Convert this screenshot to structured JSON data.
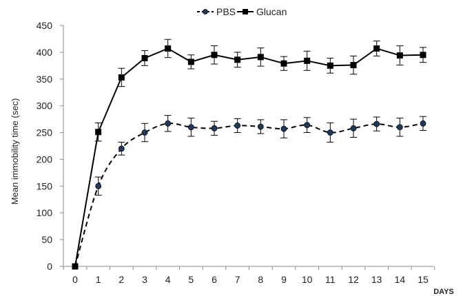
{
  "chart_data": {
    "type": "line",
    "title": "",
    "xlabel": "DAYS",
    "ylabel": "Mean immobility time (sec)",
    "xlim": [
      0,
      15
    ],
    "ylim": [
      0,
      450
    ],
    "x": [
      0,
      1,
      2,
      3,
      4,
      5,
      6,
      7,
      8,
      9,
      10,
      11,
      12,
      13,
      14,
      15
    ],
    "x_tick_labels": [
      "0",
      "1",
      "2",
      "3",
      "4",
      "5",
      "6",
      "7",
      "8",
      "9",
      "10",
      "11",
      "12",
      "13",
      "14",
      "15"
    ],
    "y_ticks": [
      0,
      50,
      100,
      150,
      200,
      250,
      300,
      350,
      400,
      450
    ],
    "y_tick_labels": [
      "0",
      "50",
      "100",
      "150",
      "200",
      "250",
      "300",
      "350",
      "400",
      "450"
    ],
    "grid": false,
    "legend_position": "top-center",
    "series": [
      {
        "name": "PBS",
        "line_style": "dashed",
        "marker": "circle",
        "color": "#000000",
        "marker_fill": "#1f3a5f",
        "values": [
          0,
          150,
          220,
          250,
          267,
          260,
          258,
          263,
          261,
          257,
          264,
          250,
          258,
          266,
          260,
          267
        ],
        "errors": [
          0,
          17,
          12,
          17,
          15,
          17,
          13,
          13,
          13,
          17,
          14,
          18,
          17,
          13,
          17,
          13
        ]
      },
      {
        "name": "Glucan",
        "line_style": "solid",
        "marker": "square",
        "color": "#000000",
        "marker_fill": "#000000",
        "values": [
          0,
          251,
          353,
          389,
          407,
          382,
          395,
          386,
          391,
          379,
          384,
          375,
          376,
          407,
          394,
          395
        ],
        "errors": [
          0,
          17,
          17,
          14,
          17,
          13,
          17,
          14,
          17,
          13,
          18,
          14,
          17,
          14,
          18,
          14
        ]
      }
    ]
  }
}
